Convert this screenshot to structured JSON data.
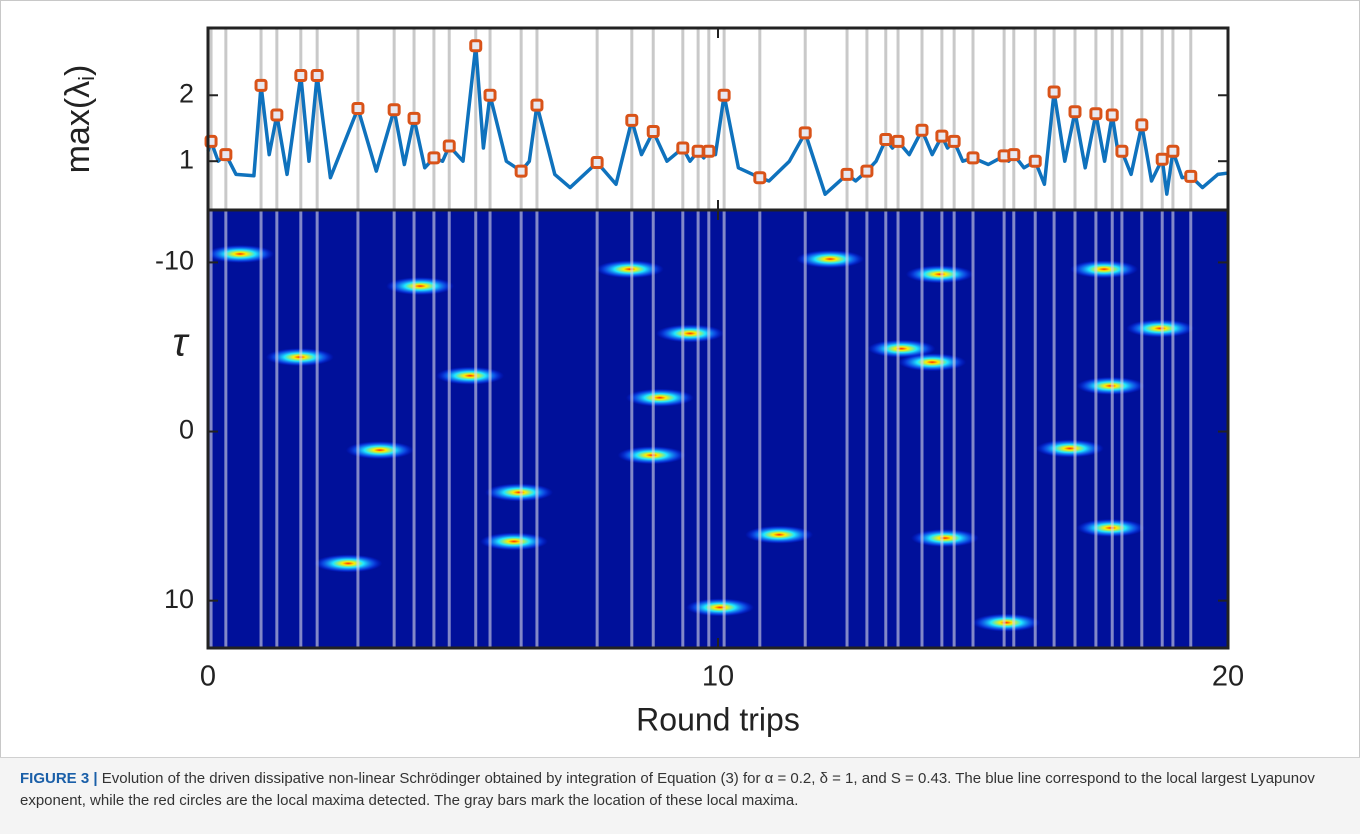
{
  "chart_data": [
    {
      "type": "line",
      "ylabel": "max(λ",
      "ylabel_subscript": "i",
      "ylabel_end": ")",
      "xlim": [
        0,
        20
      ],
      "ylim": [
        0.26,
        3.02
      ],
      "yticks": [
        1,
        2
      ],
      "color": "#0f72bd",
      "x": [
        0,
        0.06,
        0.2,
        0.35,
        0.55,
        0.9,
        1.04,
        1.2,
        1.35,
        1.55,
        1.82,
        1.98,
        2.14,
        2.4,
        2.94,
        3.3,
        3.65,
        3.85,
        4.04,
        4.25,
        4.43,
        4.6,
        4.73,
        5.0,
        5.25,
        5.4,
        5.53,
        5.85,
        6.14,
        6.3,
        6.45,
        6.8,
        7.1,
        7.63,
        8.0,
        8.31,
        8.5,
        8.73,
        9.0,
        9.31,
        9.45,
        9.61,
        9.72,
        9.82,
        9.95,
        10.12,
        10.4,
        10.82,
        11.0,
        11.4,
        11.71,
        12.1,
        12.53,
        12.7,
        12.92,
        13.1,
        13.29,
        13.42,
        13.53,
        13.75,
        14.0,
        14.2,
        14.39,
        14.5,
        14.63,
        14.8,
        15.0,
        15.3,
        15.61,
        15.7,
        15.8,
        16.0,
        16.22,
        16.4,
        16.59,
        16.8,
        17.0,
        17.2,
        17.41,
        17.58,
        17.73,
        17.83,
        17.92,
        18.1,
        18.31,
        18.5,
        18.71,
        18.8,
        18.92,
        19.1,
        19.27,
        19.5,
        19.8,
        20
      ],
      "values": [
        1.15,
        1.3,
        1.0,
        1.1,
        0.8,
        0.78,
        2.15,
        1.1,
        1.7,
        0.8,
        2.3,
        1.0,
        2.3,
        0.75,
        1.8,
        0.85,
        1.78,
        0.95,
        1.65,
        0.9,
        1.05,
        1.0,
        1.23,
        1.0,
        2.75,
        1.2,
        2.0,
        1.0,
        0.85,
        1.0,
        1.85,
        0.8,
        0.6,
        0.98,
        0.65,
        1.62,
        1.1,
        1.45,
        1.0,
        1.2,
        1.0,
        1.15,
        1.05,
        1.15,
        1.1,
        2.0,
        0.9,
        0.75,
        0.7,
        1.0,
        1.43,
        0.5,
        0.8,
        0.7,
        0.85,
        1.0,
        1.33,
        1.2,
        1.3,
        1.1,
        1.47,
        1.1,
        1.38,
        1.2,
        1.3,
        1.0,
        1.05,
        0.95,
        1.08,
        1.0,
        1.1,
        0.9,
        1.0,
        0.65,
        2.05,
        1.0,
        1.75,
        0.9,
        1.72,
        1.0,
        1.7,
        1.2,
        1.15,
        0.8,
        1.55,
        0.7,
        1.03,
        0.5,
        1.15,
        0.75,
        0.77,
        0.6,
        0.8,
        0.82
      ],
      "maxima": {
        "color": "#d95319",
        "x": [
          0.06,
          0.35,
          1.04,
          1.35,
          1.82,
          2.14,
          2.94,
          3.65,
          4.04,
          4.43,
          4.73,
          5.25,
          5.53,
          6.14,
          6.45,
          7.63,
          8.31,
          8.73,
          9.31,
          9.61,
          9.82,
          10.12,
          10.82,
          11.71,
          12.53,
          12.92,
          13.29,
          13.53,
          14.0,
          14.39,
          14.63,
          15.0,
          15.61,
          15.8,
          16.22,
          16.59,
          17.0,
          17.41,
          17.73,
          17.92,
          18.31,
          18.71,
          18.92,
          19.27
        ],
        "values": [
          1.3,
          1.1,
          2.15,
          1.7,
          2.3,
          2.3,
          1.8,
          1.78,
          1.65,
          1.05,
          1.23,
          2.75,
          2.0,
          0.85,
          1.85,
          0.98,
          1.62,
          1.45,
          1.2,
          1.15,
          1.15,
          2.0,
          0.75,
          1.43,
          0.8,
          0.85,
          1.33,
          1.3,
          1.47,
          1.38,
          1.3,
          1.05,
          1.08,
          1.1,
          1.0,
          2.05,
          1.75,
          1.72,
          1.7,
          1.15,
          1.55,
          1.03,
          1.15,
          0.77
        ]
      }
    },
    {
      "type": "heatmap",
      "xlabel": "Round trips",
      "ylabel": "τ",
      "xlim": [
        0,
        20
      ],
      "xticks": [
        0,
        10,
        20
      ],
      "ylim": [
        -13.1,
        12.8
      ],
      "yaxis_reversed": true,
      "yticks": [
        -10,
        0,
        10
      ],
      "background": "#00109a",
      "spots": {
        "x": [
          0.63,
          1.8,
          3.37,
          4.16,
          5.14,
          6.1,
          6.0,
          8.27,
          8.86,
          9.45,
          10.04,
          11.2,
          14.35,
          14.2,
          14.45,
          13.6,
          15.65,
          16.9,
          17.7,
          17.7,
          18.67,
          17.57,
          2.75,
          12.2,
          8.7
        ],
        "y": [
          -10.5,
          -4.4,
          1.1,
          -8.6,
          -3.3,
          3.6,
          6.5,
          -9.6,
          -2.0,
          -5.8,
          10.4,
          6.1,
          -9.3,
          -4.1,
          6.3,
          -4.9,
          11.3,
          1.0,
          5.7,
          -2.7,
          -6.1,
          -9.6,
          7.8,
          -10.2,
          1.4
        ]
      }
    }
  ],
  "caption": {
    "label": "FIGURE 3 |",
    "text": "Evolution of the  driven dissipative non-linear Schrödinger  obtained by integration of Equation (3) for α = 0.2, δ = 1, and S = 0.43. The blue line correspond to the local largest Lyapunov exponent, while the red circles are the local maxima detected. The gray bars mark the location of these local maxima."
  }
}
